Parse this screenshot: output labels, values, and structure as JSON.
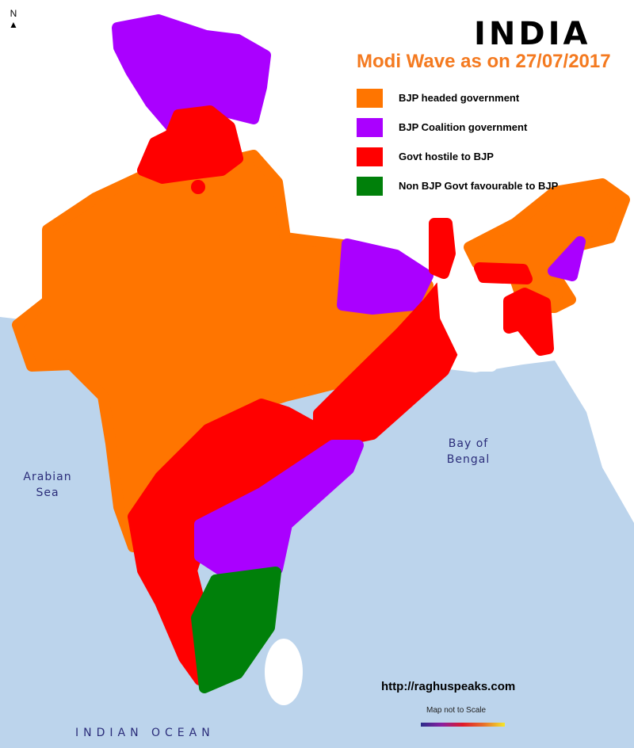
{
  "title": "INDIA",
  "subtitle": "Modi Wave as on 27/07/2017",
  "legend": [
    {
      "label": "BJP headed government",
      "color": "#ff7500"
    },
    {
      "label": "BJP Coalition government",
      "color": "#aa00ff"
    },
    {
      "label": "Govt hostile to BJP",
      "color": "#ff0000"
    },
    {
      "label": "Non BJP Govt favourable to BJP",
      "color": "#00800a"
    }
  ],
  "labels": {
    "arabian_sea": "Arabian Sea",
    "bay_of_bengal": "Bay of Bengal",
    "indian_ocean": "INDIAN OCEAN",
    "north": "N"
  },
  "source_url": "http://raghuspeaks.com",
  "scale_note": "Map not to Scale",
  "colors": {
    "sea": "#bcd4ec",
    "land": "#ffffff"
  }
}
